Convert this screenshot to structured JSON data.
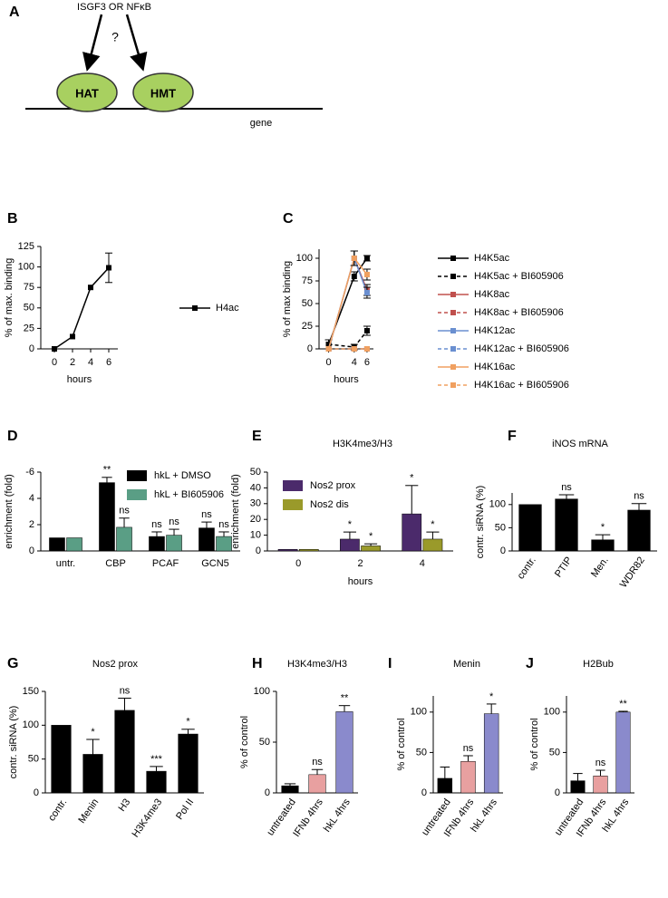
{
  "diagram": {
    "panel": "A",
    "signal": "ISGF3 OR NFκB",
    "question": "?",
    "hat": "HAT",
    "hmt": "HMT",
    "gene": "gene"
  },
  "chart_data": [
    {
      "type": "line",
      "panel": "B",
      "xlabel": "hours",
      "ylabel": "% of max. binding",
      "x": [
        0,
        2,
        4,
        6
      ],
      "xlim": [
        -1.5,
        7
      ],
      "xticks": [
        0,
        2,
        4,
        6
      ],
      "ylim": [
        0,
        125
      ],
      "yticks": [
        0,
        25,
        50,
        75,
        100,
        125
      ],
      "series": [
        {
          "name": "H4ac",
          "color": "#000000",
          "values": [
            0,
            15,
            75,
            99
          ],
          "errors": [
            0,
            0,
            0,
            18
          ]
        }
      ]
    },
    {
      "type": "line",
      "panel": "C",
      "xlabel": "hours",
      "ylabel": "% of max binding",
      "x": [
        0,
        4,
        6
      ],
      "xlim": [
        -1.5,
        7
      ],
      "xticks": [
        0,
        4,
        6
      ],
      "ylim": [
        0,
        110
      ],
      "yticks": [
        0,
        25,
        50,
        75,
        100
      ],
      "series": [
        {
          "name": "H4K5ac",
          "color": "#000000",
          "dash": false,
          "values": [
            5,
            80,
            100
          ],
          "errors": [
            5,
            5,
            3
          ]
        },
        {
          "name": "H4K5ac + BI605906",
          "color": "#000000",
          "dash": true,
          "values": [
            5,
            2,
            20
          ],
          "errors": [
            5,
            3,
            5
          ]
        },
        {
          "name": "H4K8ac",
          "color": "#c0504d",
          "dash": false,
          "values": [
            0,
            100,
            65
          ],
          "errors": [
            0,
            8,
            6
          ]
        },
        {
          "name": "H4K8ac + BI605906",
          "color": "#c0504d",
          "dash": true,
          "values": [
            0,
            0,
            0
          ],
          "errors": [
            0,
            0,
            0
          ]
        },
        {
          "name": "H4K12ac",
          "color": "#6a8fd0",
          "dash": false,
          "values": [
            0,
            100,
            62
          ],
          "errors": [
            0,
            8,
            6
          ]
        },
        {
          "name": "H4K12ac + BI605906",
          "color": "#6a8fd0",
          "dash": true,
          "values": [
            0,
            0,
            0
          ],
          "errors": [
            0,
            0,
            0
          ]
        },
        {
          "name": "H4K16ac",
          "color": "#f0a060",
          "dash": false,
          "values": [
            0,
            100,
            82
          ],
          "errors": [
            0,
            8,
            6
          ]
        },
        {
          "name": "H4K16ac + BI605906",
          "color": "#f0a060",
          "dash": true,
          "values": [
            0,
            0,
            0
          ],
          "errors": [
            0,
            0,
            0
          ]
        }
      ]
    },
    {
      "type": "bar",
      "panel": "D",
      "ylabel": "enrichment (fold)",
      "categories": [
        "untr.",
        "CBP",
        "PCAF",
        "GCN5"
      ],
      "ylim": [
        0,
        6
      ],
      "yticks": [
        0,
        2,
        4,
        {
          "value": 6,
          "label": "-6"
        }
      ],
      "series": [
        {
          "name": "hkL + DMSO",
          "color": "#000000",
          "values": [
            1,
            5.2,
            1.1,
            1.75
          ],
          "errors": [
            0,
            0.4,
            0.35,
            0.45
          ],
          "annotations": [
            null,
            "**",
            "ns",
            "ns"
          ]
        },
        {
          "name": "hkL + BI605906",
          "color": "#5a9e85",
          "values": [
            1,
            1.8,
            1.2,
            1.1
          ],
          "errors": [
            0,
            0.7,
            0.45,
            0.35
          ],
          "annotations": [
            null,
            "ns",
            "ns",
            "ns"
          ]
        }
      ]
    },
    {
      "type": "bar",
      "panel": "E",
      "title": "H3K4me3/H3",
      "xlabel": "hours",
      "ylabel": "enrichment (fold)",
      "categories": [
        "0",
        "2",
        "4"
      ],
      "ylim": [
        0,
        50
      ],
      "yticks": [
        0,
        10,
        20,
        30,
        40,
        50
      ],
      "series": [
        {
          "name": "Nos2 prox",
          "color": "#4b2a6b",
          "values": [
            1,
            7.5,
            23.5
          ],
          "errors": [
            0,
            4.5,
            18
          ],
          "annotations": [
            null,
            "*",
            "*"
          ]
        },
        {
          "name": "Nos2 dis",
          "color": "#9a9a2a",
          "values": [
            1,
            3.2,
            7.5
          ],
          "errors": [
            0,
            1.3,
            4.5
          ],
          "annotations": [
            null,
            "*",
            "*"
          ]
        }
      ]
    },
    {
      "type": "bar",
      "panel": "F",
      "title": "iNOS mRNA",
      "ylabel": "contr. siRNA (%)",
      "categories": [
        "contr.",
        "PTIP",
        "Men.",
        "WDR82"
      ],
      "ylim": [
        0,
        125
      ],
      "yticks": [
        0,
        50,
        100
      ],
      "series": [
        {
          "color": "#000000",
          "values": [
            100,
            112,
            24,
            88
          ],
          "errors": [
            0,
            9,
            11,
            14
          ],
          "annotations": [
            null,
            "ns",
            "*",
            "ns"
          ]
        }
      ]
    },
    {
      "type": "bar",
      "panel": "G",
      "title": "Nos2 prox",
      "ylabel": "contr. siRNA (%)",
      "categories": [
        "contr.",
        "Menin",
        "H3",
        "H3K4me3",
        "Pol II"
      ],
      "ylim": [
        0,
        150
      ],
      "yticks": [
        0,
        50,
        100,
        150
      ],
      "series": [
        {
          "color": "#000000",
          "values": [
            100,
            57,
            122,
            32,
            87
          ],
          "errors": [
            0,
            22,
            18,
            7,
            7
          ],
          "annotations": [
            null,
            "*",
            "ns",
            "***",
            "*"
          ]
        }
      ]
    },
    {
      "type": "bar",
      "panel": "H",
      "title": "H3K4me3/H3",
      "ylabel": "% of control",
      "categories": [
        "untreated",
        "IFNb 4hrs",
        "hkL 4hrs"
      ],
      "ylim": [
        0,
        100
      ],
      "yticks": [
        0,
        50,
        100
      ],
      "series": [
        {
          "color": [
            "#000000",
            "#e8a0a0",
            "#8a8acc"
          ],
          "values": [
            7,
            18,
            80
          ],
          "errors": [
            2,
            5,
            6
          ],
          "annotations": [
            null,
            "ns",
            "**"
          ]
        }
      ]
    },
    {
      "type": "bar",
      "panel": "I",
      "title": "Menin",
      "ylabel": "% of control",
      "categories": [
        "untreated",
        "IFNb 4hrs",
        "hkL 4hrs"
      ],
      "ylim": [
        0,
        120
      ],
      "yticks": [
        0,
        50,
        100
      ],
      "series": [
        {
          "color": [
            "#000000",
            "#e8a0a0",
            "#8a8acc"
          ],
          "values": [
            18,
            39,
            98
          ],
          "errors": [
            14,
            7,
            12
          ],
          "annotations": [
            null,
            "ns",
            "*"
          ]
        }
      ]
    },
    {
      "type": "bar",
      "panel": "J",
      "title": "H2Bub",
      "ylabel": "% of control",
      "categories": [
        "untreated",
        "IFNb 4hrs",
        "hkL 4hrs"
      ],
      "ylim": [
        0,
        120
      ],
      "yticks": [
        0,
        50,
        100
      ],
      "series": [
        {
          "color": [
            "#000000",
            "#e8a0a0",
            "#8a8acc"
          ],
          "values": [
            15,
            21,
            100
          ],
          "errors": [
            9,
            7,
            1
          ],
          "annotations": [
            null,
            "ns",
            "**"
          ]
        }
      ]
    }
  ]
}
